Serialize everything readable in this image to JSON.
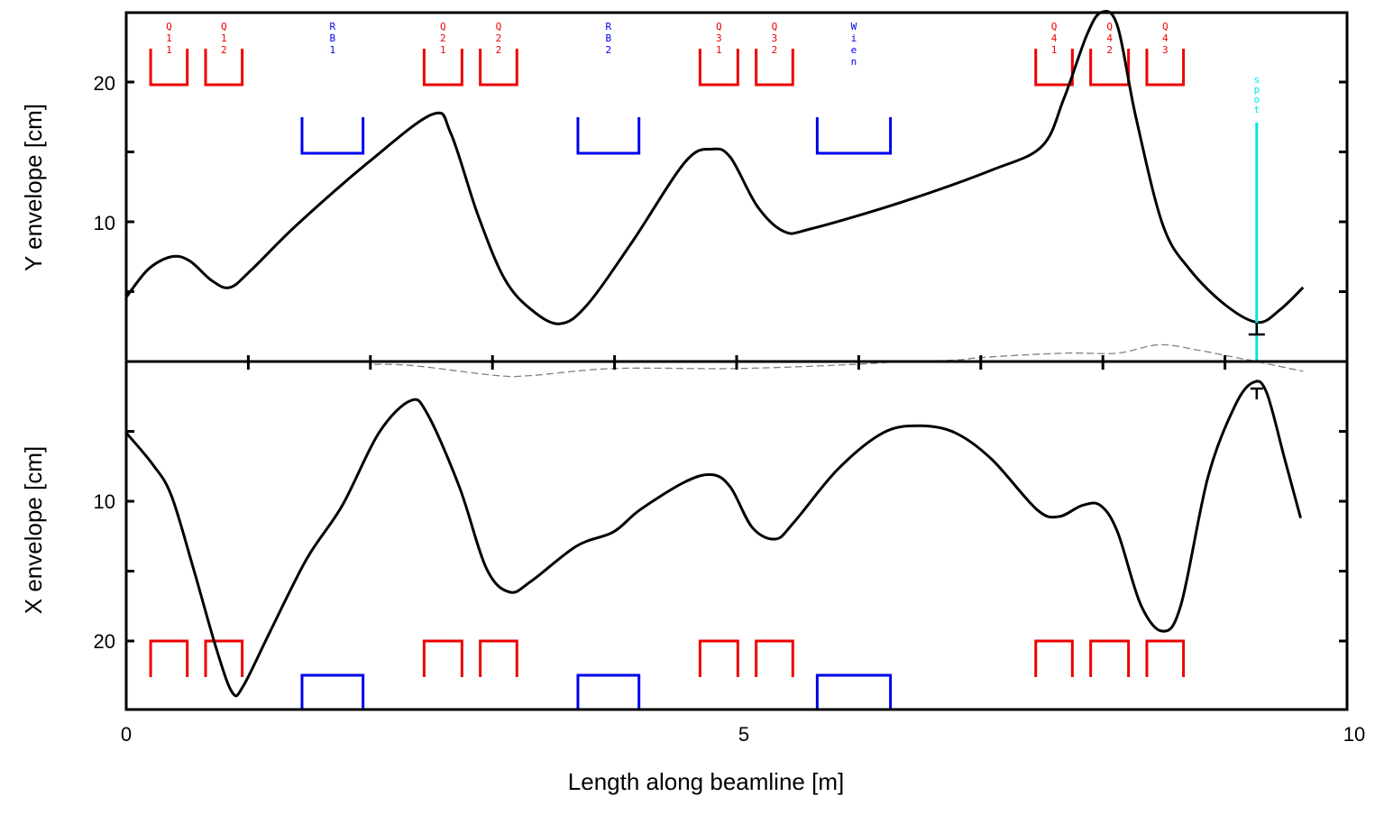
{
  "chart_data": {
    "type": "line",
    "xlabel": "Length along beamline [m]",
    "xlim": [
      0,
      10
    ],
    "x_ticks": [
      "0",
      "5",
      "10"
    ],
    "grid": false,
    "panels": [
      {
        "ylabel": "Y envelope [cm]",
        "ylim": [
          0,
          25
        ],
        "y_ticks": [
          "10",
          "20"
        ],
        "series": [
          {
            "color": "#000000",
            "x": [
              0,
              0.18,
              0.37,
              0.52,
              0.7,
              0.85,
              1.03,
              1.4,
              1.99,
              2.51,
              2.66,
              2.88,
              3.1,
              3.32,
              3.55,
              3.77,
              4.14,
              4.58,
              4.8,
              4.95,
              5.17,
              5.39,
              5.61,
              6.35,
              7.09,
              7.5,
              7.68,
              7.87,
              7.99,
              8.12,
              8.27,
              8.49,
              8.71,
              9.01,
              9.27,
              9.45,
              9.64
            ],
            "y": [
              4.6,
              6.6,
              7.5,
              7.2,
              5.8,
              5.3,
              6.6,
              9.8,
              14.3,
              17.7,
              16.3,
              10.5,
              5.9,
              3.7,
              2.7,
              4.0,
              8.5,
              14.3,
              15.2,
              14.6,
              11.1,
              9.3,
              9.5,
              11.4,
              13.7,
              15.4,
              18.8,
              23.4,
              25.0,
              24.0,
              17.5,
              9.8,
              6.6,
              4.0,
              2.8,
              3.7,
              5.3
            ]
          }
        ]
      },
      {
        "ylabel": "X envelope [cm]",
        "ylim": [
          0,
          25
        ],
        "inverted": true,
        "y_ticks": [
          "10",
          "20"
        ],
        "series": [
          {
            "color": "#000000",
            "x": [
              0,
              0.22,
              0.37,
              0.55,
              0.74,
              0.87,
              0.96,
              1.18,
              1.48,
              1.77,
              2.07,
              2.33,
              2.47,
              2.73,
              2.95,
              3.14,
              3.32,
              3.69,
              3.99,
              4.21,
              4.58,
              4.8,
              4.95,
              5.13,
              5.32,
              5.47,
              5.83,
              6.2,
              6.5,
              6.79,
              7.09,
              7.46,
              7.64,
              7.83,
              7.98,
              8.12,
              8.31,
              8.49,
              8.64,
              8.86,
              9.08,
              9.23,
              9.34,
              9.49,
              9.62
            ],
            "y": [
              5.1,
              7.4,
              9.6,
              14.8,
              20.6,
              23.7,
              23.2,
              19.3,
              14.1,
              10.3,
              5.1,
              2.8,
              3.8,
              9.0,
              14.8,
              16.5,
              15.7,
              13.2,
              12.2,
              10.6,
              8.6,
              8.1,
              9.0,
              11.9,
              12.7,
              11.5,
              7.7,
              5.1,
              4.6,
              5.1,
              7.0,
              10.6,
              11.1,
              10.3,
              10.3,
              12.2,
              17.4,
              19.3,
              17.4,
              8.3,
              3.2,
              1.5,
              2.2,
              7.0,
              11.2
            ]
          }
        ]
      }
    ],
    "dispersion_dashed": {
      "color": "#808080",
      "x": [
        2.03,
        2.36,
        3.03,
        3.32,
        3.99,
        5.02,
        5.98,
        6.35,
        6.79,
        7.02,
        7.68,
        8.12,
        8.46,
        8.79,
        9.08,
        9.26,
        9.64
      ],
      "y": [
        -0.2,
        -0.3,
        -1.0,
        -1.0,
        -0.5,
        -0.5,
        -0.2,
        0,
        0.1,
        0.3,
        0.6,
        0.6,
        1.2,
        0.8,
        0.3,
        0,
        -0.7
      ]
    },
    "elements": [
      {
        "label": "Q11",
        "type": "quadrupole",
        "start": 0.2,
        "end": 0.5
      },
      {
        "label": "Q12",
        "type": "quadrupole",
        "start": 0.65,
        "end": 0.95
      },
      {
        "label": "RB1",
        "type": "bend",
        "start": 1.44,
        "end": 1.94
      },
      {
        "label": "Q21",
        "type": "quadrupole",
        "start": 2.44,
        "end": 2.75
      },
      {
        "label": "Q22",
        "type": "quadrupole",
        "start": 2.9,
        "end": 3.2
      },
      {
        "label": "RB2",
        "type": "bend",
        "start": 3.7,
        "end": 4.2
      },
      {
        "label": "Q31",
        "type": "quadrupole",
        "start": 4.7,
        "end": 5.01
      },
      {
        "label": "Q32",
        "type": "quadrupole",
        "start": 5.16,
        "end": 5.46
      },
      {
        "label": "Wien",
        "type": "bend",
        "start": 5.66,
        "end": 6.26
      },
      {
        "label": "Q41",
        "type": "quadrupole",
        "start": 7.45,
        "end": 7.75
      },
      {
        "label": "Q42",
        "type": "quadrupole",
        "start": 7.9,
        "end": 8.21
      },
      {
        "label": "Q43",
        "type": "quadrupole",
        "start": 8.36,
        "end": 8.66
      }
    ],
    "spot": {
      "label": "spot",
      "x": 9.26,
      "color": "#00e5e5"
    },
    "colors": {
      "quadrupole": "#ee0000",
      "bend": "#0000ee"
    }
  }
}
